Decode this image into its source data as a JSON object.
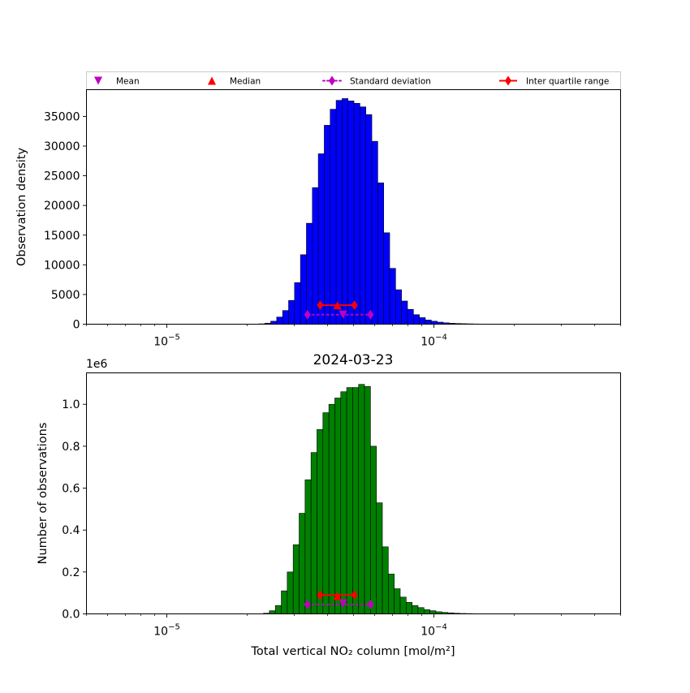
{
  "chart_data": [
    {
      "type": "bar",
      "panel": "top",
      "xscale": "log",
      "xlim": [
        5e-06,
        0.0005
      ],
      "ylim": [
        0,
        39500
      ],
      "xlabel": "",
      "ylabel": "Observation density",
      "title": "",
      "bar_color": "#0000ff",
      "edge_color": "#000000",
      "yticks": [
        0,
        5000,
        10000,
        15000,
        20000,
        25000,
        30000,
        35000
      ],
      "ytick_labels": [
        "0",
        "5000",
        "10000",
        "15000",
        "20000",
        "25000",
        "30000",
        "35000"
      ],
      "xtick_labels": [
        {
          "value": 1e-05,
          "base": "10",
          "exp": "−5"
        },
        {
          "value": 0.0001,
          "base": "10",
          "exp": "−4"
        }
      ],
      "bins": {
        "start": 2.1e-05,
        "ratio": 1.0526,
        "count": 43
      },
      "values": [
        20,
        60,
        170,
        500,
        1200,
        2300,
        4000,
        7000,
        11700,
        17000,
        23000,
        28700,
        33500,
        36200,
        37700,
        38000,
        37600,
        37200,
        36600,
        35300,
        30800,
        23800,
        15400,
        9400,
        5800,
        3900,
        2500,
        1600,
        1100,
        700,
        500,
        340,
        230,
        160,
        110,
        80,
        60,
        40,
        30,
        20,
        10,
        5,
        2
      ],
      "markers": {
        "mean": {
          "x": 4.57e-05,
          "y": 1600
        },
        "median": {
          "x": 4.35e-05,
          "y": 3200
        },
        "std": {
          "x": [
            3.36e-05,
            5.79e-05
          ],
          "y": 1600
        },
        "iqr": {
          "x": [
            3.75e-05,
            5.04e-05
          ],
          "y": 3200
        }
      }
    },
    {
      "type": "bar",
      "panel": "bottom",
      "xscale": "log",
      "xlim": [
        5e-06,
        0.0005
      ],
      "ylim": [
        0,
        1150000
      ],
      "xlabel": "Total vertical NO₂ column [mol/m²]",
      "ylabel": "Number of observations",
      "title": "2024-03-23",
      "offset_text": "1e6",
      "bar_color": "#008000",
      "edge_color": "#000000",
      "yticks": [
        0,
        200000,
        400000,
        600000,
        800000,
        1000000
      ],
      "ytick_labels": [
        "0.0",
        "0.2",
        "0.4",
        "0.6",
        "0.8",
        "1.0"
      ],
      "xtick_labels": [
        {
          "value": 1e-05,
          "base": "10",
          "exp": "−5"
        },
        {
          "value": 0.0001,
          "base": "10",
          "exp": "−4"
        }
      ],
      "bins": {
        "start": 2.3e-05,
        "ratio": 1.0526,
        "count": 41
      },
      "values": [
        3000,
        15000,
        40000,
        110000,
        200000,
        330000,
        480000,
        640000,
        770000,
        880000,
        960000,
        1000000,
        1030000,
        1060000,
        1080000,
        1080000,
        1095000,
        1085000,
        800000,
        530000,
        320000,
        190000,
        120000,
        80000,
        55000,
        40000,
        30000,
        20000,
        15000,
        10000,
        7000,
        5000,
        3000,
        2000,
        1500,
        1000,
        700,
        500,
        300,
        200,
        100
      ],
      "markers": {
        "mean": {
          "x": 4.57e-05,
          "y": 50000
        },
        "median": {
          "x": 4.35e-05,
          "y": 85000
        },
        "std": {
          "x": [
            3.36e-05,
            5.79e-05
          ],
          "y": 45000
        },
        "iqr": {
          "x": [
            3.75e-05,
            5.04e-05
          ],
          "y": 90000
        }
      }
    }
  ],
  "legend": {
    "placement": "top",
    "entries": [
      {
        "key": "mean",
        "label": "Mean",
        "color": "#bf00bf",
        "marker": "triangle-down"
      },
      {
        "key": "median",
        "label": "Median",
        "color": "#ff0000",
        "marker": "triangle-up"
      },
      {
        "key": "std",
        "label": "Standard deviation",
        "color": "#bf00bf",
        "marker": "diamond",
        "line": "dotted"
      },
      {
        "key": "iqr",
        "label": "Inter quartile range",
        "color": "#ff0000",
        "marker": "diamond",
        "line": "solid"
      }
    ]
  }
}
